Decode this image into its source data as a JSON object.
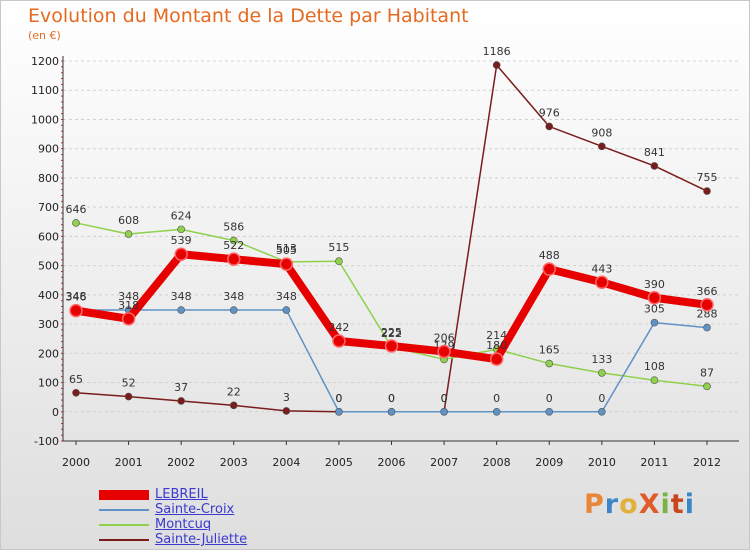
{
  "header": {
    "title": "Evolution du Montant de la Dette par Habitant",
    "subtitle": "(en €)"
  },
  "logo": {
    "text": "ProXiti",
    "colors": [
      "#e8873a",
      "#3a86c8",
      "#e2b13c",
      "#e05a2a",
      "#7ab342",
      "#c8451e",
      "#3a86c8"
    ]
  },
  "chart_data": {
    "type": "line",
    "title": "Evolution du Montant de la Dette par Habitant",
    "subtitle": "(en €)",
    "xlabel": "",
    "ylabel": "",
    "x": [
      "2000",
      "2001",
      "2002",
      "2003",
      "2004",
      "2005",
      "2006",
      "2007",
      "2008",
      "2009",
      "2010",
      "2011",
      "2012"
    ],
    "ylim": [
      -100,
      1200
    ],
    "yticks": [
      -100,
      0,
      100,
      200,
      300,
      400,
      500,
      600,
      700,
      800,
      900,
      1000,
      1100,
      1200
    ],
    "grid": "horizontal dashed",
    "legend_position": "bottom-left",
    "series": [
      {
        "name": "LEBREIL",
        "color": "#e60000",
        "values": [
          346,
          318,
          539,
          522,
          505,
          242,
          225,
          206,
          180,
          488,
          443,
          390,
          366
        ]
      },
      {
        "name": "Sainte-Croix",
        "color": "#5f93c6",
        "values": [
          348,
          348,
          348,
          348,
          348,
          0,
          0,
          0,
          0,
          0,
          0,
          305,
          288
        ]
      },
      {
        "name": "Montcuq",
        "color": "#8fd14b",
        "values": [
          646,
          608,
          624,
          586,
          513,
          515,
          222,
          179,
          214,
          165,
          133,
          108,
          87
        ]
      },
      {
        "name": "Sainte-Juliette",
        "color": "#7a1c1c",
        "values": [
          65,
          52,
          37,
          22,
          3,
          0,
          0,
          0,
          1186,
          976,
          908,
          841,
          755
        ]
      }
    ]
  }
}
